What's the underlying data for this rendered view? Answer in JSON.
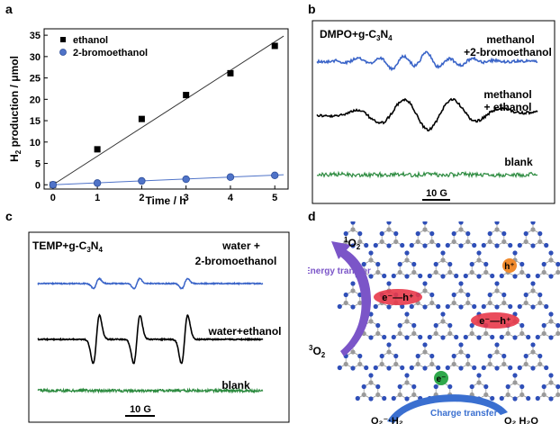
{
  "panels": [
    {
      "letter": "a"
    },
    {
      "letter": "b"
    },
    {
      "letter": "c"
    },
    {
      "letter": "d"
    }
  ],
  "chart_data": [
    {
      "type": "scatter",
      "panel": "a",
      "xlabel": "Time / h",
      "ylabel": "H2 production / μmol",
      "xlim": [
        0,
        5
      ],
      "ylim": [
        0,
        35
      ],
      "x_ticks": [
        0,
        1,
        2,
        3,
        4,
        5
      ],
      "y_ticks": [
        0,
        5,
        10,
        15,
        20,
        25,
        30,
        35
      ],
      "legend_position": "top-left",
      "series": [
        {
          "name": "ethanol",
          "marker": "square",
          "color": "#000000",
          "x": [
            0,
            1,
            2,
            3,
            4,
            5
          ],
          "y": [
            0,
            8.3,
            15.4,
            21.0,
            26.1,
            32.5
          ],
          "fit_line": {
            "from": [
              0,
              0
            ],
            "to": [
              5.2,
              34.8
            ]
          }
        },
        {
          "name": "2-bromoethanol",
          "marker": "circle",
          "color": "#4f73c8",
          "x": [
            0,
            1,
            2,
            3,
            4,
            5
          ],
          "y": [
            0,
            0.4,
            0.9,
            1.3,
            1.8,
            2.2
          ],
          "fit_line": {
            "from": [
              0,
              0
            ],
            "to": [
              5.2,
              2.35
            ]
          }
        }
      ]
    },
    {
      "type": "line",
      "panel": "b",
      "title": "DMPO+g-C3N4",
      "scale_bar": "10 G",
      "series": [
        {
          "name": "methanol +2-bromoethanol",
          "color": "#3a64c8"
        },
        {
          "name": "methanol + ethanol",
          "color": "#000000"
        },
        {
          "name": "blank",
          "color": "#2b8a3e"
        }
      ]
    },
    {
      "type": "line",
      "panel": "c",
      "title": "TEMP+g-C3N4",
      "scale_bar": "10 G",
      "series": [
        {
          "name": "water + 2-bromoethanol",
          "color": "#3a64c8"
        },
        {
          "name": "water+ethanol",
          "color": "#000000"
        },
        {
          "name": "blank",
          "color": "#2b8a3e"
        }
      ]
    }
  ],
  "panel_b": {
    "title_main": "DMPO+g-C",
    "title_sub1": "3",
    "title_mid": "N",
    "title_sub2": "4",
    "label1_line1": "methanol",
    "label1_line2": "+2-bromoethanol",
    "label2_line1": "methanol",
    "label2_line2": "+ ethanol",
    "label3": "blank",
    "scale": "10 G"
  },
  "panel_c": {
    "title_main": "TEMP+g-C",
    "title_sub1": "3",
    "title_mid": "N",
    "title_sub2": "4",
    "label1_line1": "water +",
    "label1_line2": "2-bromoethanol",
    "label2": "water+ethanol",
    "label3": "blank",
    "scale": "10 G"
  },
  "panel_d": {
    "singlet_pre": "1",
    "singlet": "O",
    "singlet_sub": "2",
    "triplet_pre": "3",
    "triplet": "O",
    "triplet_sub": "2",
    "energy_transfer": "Energy transfer",
    "charge_transfer": "Charge transfer",
    "pair": "e⁻—h⁺",
    "hole": "h⁺",
    "electron": "e⁻",
    "product1": "O₂⁻·H₂",
    "product2": "O₂ H₂O"
  },
  "colors": {
    "blue_trace": "#3a64c8",
    "green_trace": "#2b8a3e",
    "energy_arrow": "#7b55c8",
    "charge_arrow": "#3a6fd0",
    "pair_red": "#e8384a",
    "hole_orange": "#f08a2c",
    "electron_green": "#2fa84a",
    "nitrogen": "#2f4fb8",
    "carbon": "#9a9a9a"
  }
}
